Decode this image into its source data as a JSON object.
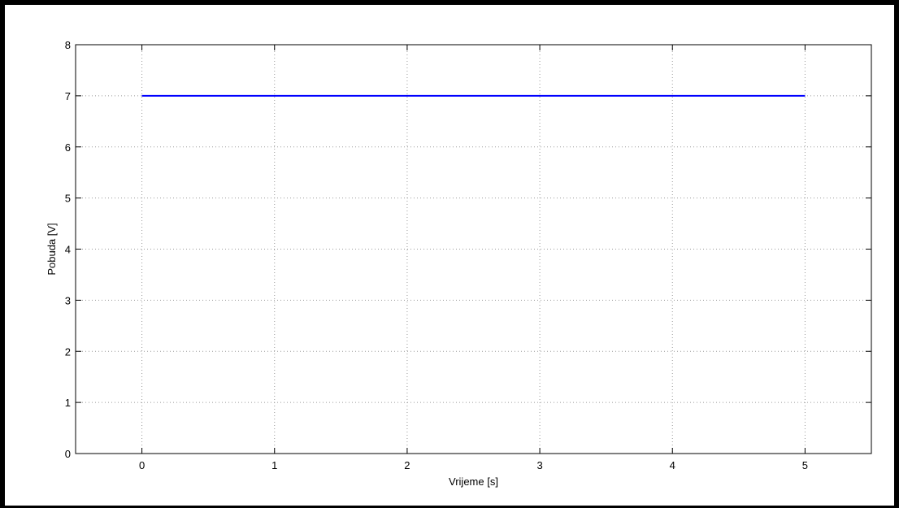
{
  "chart_data": {
    "type": "line",
    "title": "",
    "xlabel": "Vrijeme [s]",
    "ylabel": "Pobuda [V]",
    "xlim": [
      -0.5,
      5.5
    ],
    "ylim": [
      0,
      8
    ],
    "xticks": [
      0,
      1,
      2,
      3,
      4,
      5
    ],
    "yticks": [
      0,
      1,
      2,
      3,
      4,
      5,
      6,
      7,
      8
    ],
    "grid": true,
    "series": [
      {
        "x": [
          0,
          5
        ],
        "y": [
          7,
          7
        ],
        "color": "#0000ff"
      }
    ]
  }
}
